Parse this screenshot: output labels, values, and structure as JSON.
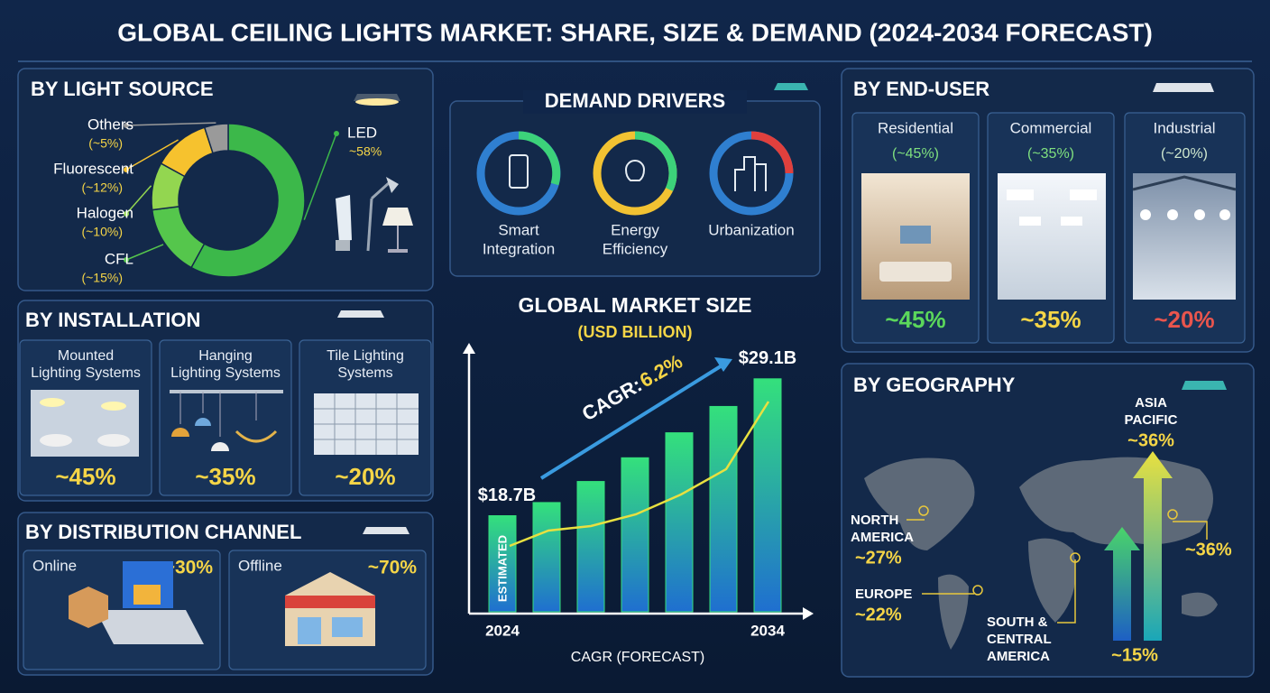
{
  "title": "GLOBAL CEILING LIGHTS MARKET: SHARE, SIZE & DEMAND (2024-2034 FORECAST)",
  "chart_data": [
    {
      "type": "pie",
      "title": "BY LIGHT SOURCE",
      "categories": [
        "LED",
        "CFL",
        "Halogen",
        "Fluorescent",
        "Others"
      ],
      "values": [
        58,
        15,
        10,
        12,
        5
      ],
      "value_labels": [
        "~58%",
        "(~15%)",
        "(~10%)",
        "(~12%)",
        "(~5%)"
      ],
      "colors": [
        "#3cb84a",
        "#55c64c",
        "#93d650",
        "#f6c22e",
        "#9a9a9a"
      ]
    },
    {
      "type": "bar",
      "title": "GLOBAL MARKET SIZE",
      "subtitle": "(USD BILLION)",
      "categories": [
        "2024",
        null,
        null,
        null,
        null,
        null,
        "2034"
      ],
      "values": [
        18.7,
        19.7,
        21.3,
        23.1,
        25.0,
        27.0,
        29.1
      ],
      "value_labels": [
        "$18.7B",
        null,
        null,
        null,
        null,
        null,
        "$29.1B"
      ],
      "color": "#34e07c",
      "ylim": [
        11.4,
        30.8
      ],
      "annotations": [
        "CAGR:",
        "6.2%",
        "ESTIMATED"
      ],
      "xlabel": "CAGR (FORECAST)"
    }
  ],
  "demand_drivers": {
    "title": "DEMAND DRIVERS",
    "items": [
      [
        "Smart",
        "Integration"
      ],
      [
        "Energy",
        "Efficiency"
      ],
      [
        "Urbanization"
      ]
    ]
  },
  "installation": {
    "title": "BY INSTALLATION",
    "items": [
      {
        "name": [
          "Mounted",
          "Lighting Systems"
        ],
        "share": "~45%"
      },
      {
        "name": [
          "Hanging",
          "Lighting Systems"
        ],
        "share": "~35%"
      },
      {
        "name": [
          "Tile Lighting",
          "Systems"
        ],
        "share": "~20%"
      }
    ]
  },
  "distribution": {
    "title": "BY DISTRIBUTION CHANNEL",
    "items": [
      {
        "name": "Online",
        "share": "~30%"
      },
      {
        "name": "Offline",
        "share": "~70%"
      }
    ]
  },
  "end_user": {
    "title": "BY END-USER",
    "items": [
      {
        "name": "Residential",
        "note": "(~45%)",
        "share": "~45%"
      },
      {
        "name": "Commercial",
        "note": "(~35%)",
        "share": "~35%"
      },
      {
        "name": "Industrial",
        "note": "(~20%)",
        "share": "~20%"
      }
    ]
  },
  "geography": {
    "title": "BY GEOGRAPHY",
    "regions": [
      {
        "name": [
          "ASIA",
          "PACIFIC"
        ],
        "share": "~36%"
      },
      {
        "name": [
          "NORTH",
          "AMERICA"
        ],
        "share": "~27%"
      },
      {
        "name": [
          "EUROPE"
        ],
        "share": "~22%"
      },
      {
        "name": [
          "SOUTH &",
          "CENTRAL",
          "AMERICA"
        ],
        "share": "~15%"
      }
    ],
    "extra": "~36%"
  }
}
